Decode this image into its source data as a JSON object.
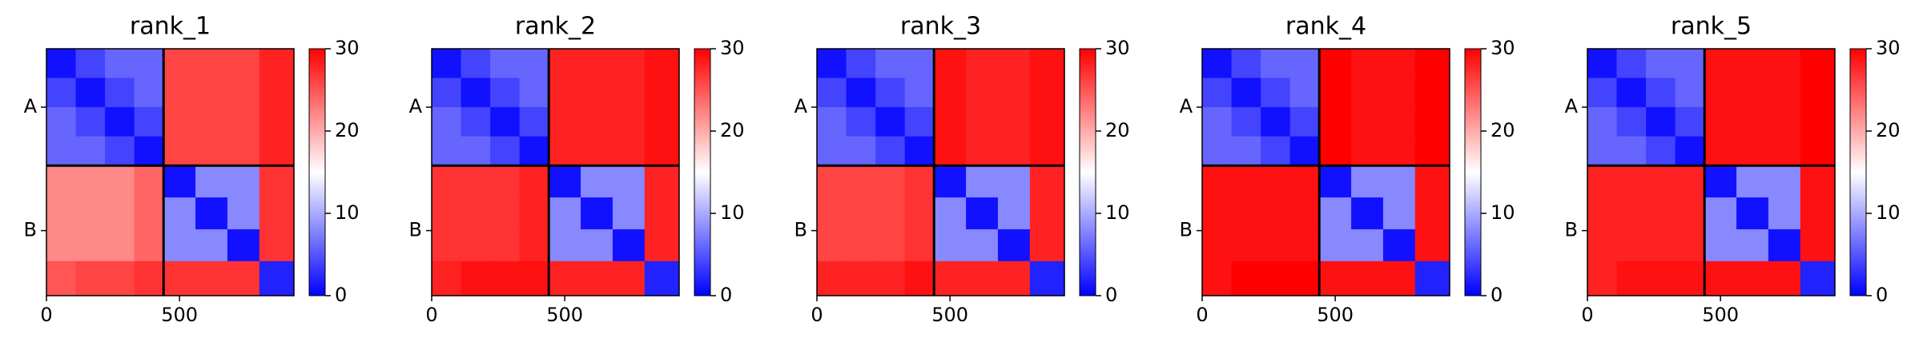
{
  "chart_data": [
    {
      "type": "heatmap",
      "title": "rank_1",
      "edges": [
        0,
        110,
        220,
        330,
        440,
        560,
        680,
        800,
        930
      ],
      "xlim": [
        0,
        930
      ],
      "ylim": [
        930,
        0
      ],
      "xticks": [
        0,
        500
      ],
      "yticks": [
        {
          "value": 220,
          "label": "A"
        },
        {
          "value": 685,
          "label": "B"
        }
      ],
      "chain_breaks": [
        440
      ],
      "clim": [
        0,
        30
      ],
      "cticks": [
        0,
        10,
        20,
        30
      ],
      "values": [
        [
          1,
          4,
          6,
          6,
          26,
          26,
          26,
          28
        ],
        [
          4,
          1,
          4,
          6,
          26,
          26,
          26,
          28
        ],
        [
          6,
          4,
          1,
          4,
          26,
          26,
          26,
          28
        ],
        [
          6,
          6,
          4,
          1,
          26,
          26,
          26,
          28
        ],
        [
          22,
          22,
          22,
          24,
          1,
          8,
          8,
          27
        ],
        [
          22,
          22,
          22,
          24,
          8,
          1,
          8,
          27
        ],
        [
          22,
          22,
          22,
          24,
          8,
          8,
          1,
          27
        ],
        [
          25,
          26,
          26,
          27,
          27,
          27,
          27,
          2
        ]
      ]
    },
    {
      "type": "heatmap",
      "title": "rank_2",
      "edges": [
        0,
        110,
        220,
        330,
        440,
        560,
        680,
        800,
        930
      ],
      "xlim": [
        0,
        930
      ],
      "ylim": [
        930,
        0
      ],
      "xticks": [
        0,
        500
      ],
      "yticks": [
        {
          "value": 220,
          "label": "A"
        },
        {
          "value": 685,
          "label": "B"
        }
      ],
      "chain_breaks": [
        440
      ],
      "clim": [
        0,
        30
      ],
      "cticks": [
        0,
        10,
        20,
        30
      ],
      "values": [
        [
          1,
          4,
          6,
          6,
          28,
          28,
          28,
          29
        ],
        [
          4,
          1,
          4,
          6,
          28,
          28,
          28,
          29
        ],
        [
          6,
          4,
          1,
          4,
          28,
          28,
          28,
          29
        ],
        [
          6,
          6,
          4,
          1,
          28,
          28,
          28,
          29
        ],
        [
          27,
          27,
          27,
          28,
          1,
          8,
          8,
          28
        ],
        [
          27,
          27,
          27,
          28,
          8,
          1,
          8,
          28
        ],
        [
          27,
          27,
          27,
          28,
          8,
          8,
          1,
          28
        ],
        [
          28,
          29,
          29,
          29,
          28,
          28,
          28,
          2
        ]
      ]
    },
    {
      "type": "heatmap",
      "title": "rank_3",
      "edges": [
        0,
        110,
        220,
        330,
        440,
        560,
        680,
        800,
        930
      ],
      "xlim": [
        0,
        930
      ],
      "ylim": [
        930,
        0
      ],
      "xticks": [
        0,
        500
      ],
      "yticks": [
        {
          "value": 220,
          "label": "A"
        },
        {
          "value": 685,
          "label": "B"
        }
      ],
      "chain_breaks": [
        440
      ],
      "clim": [
        0,
        30
      ],
      "cticks": [
        0,
        10,
        20,
        30
      ],
      "values": [
        [
          1,
          4,
          6,
          6,
          29,
          28,
          28,
          29
        ],
        [
          4,
          1,
          4,
          6,
          29,
          28,
          28,
          29
        ],
        [
          6,
          4,
          1,
          4,
          29,
          28,
          28,
          29
        ],
        [
          6,
          6,
          4,
          1,
          29,
          28,
          28,
          29
        ],
        [
          26,
          26,
          26,
          27,
          1,
          8,
          8,
          28
        ],
        [
          26,
          26,
          26,
          27,
          8,
          1,
          8,
          28
        ],
        [
          26,
          26,
          26,
          27,
          8,
          8,
          1,
          28
        ],
        [
          28,
          28,
          28,
          29,
          28,
          28,
          28,
          2
        ]
      ]
    },
    {
      "type": "heatmap",
      "title": "rank_4",
      "edges": [
        0,
        110,
        220,
        330,
        440,
        560,
        680,
        800,
        930
      ],
      "xlim": [
        0,
        930
      ],
      "ylim": [
        930,
        0
      ],
      "xticks": [
        0,
        500
      ],
      "yticks": [
        {
          "value": 220,
          "label": "A"
        },
        {
          "value": 685,
          "label": "B"
        }
      ],
      "chain_breaks": [
        440
      ],
      "clim": [
        0,
        30
      ],
      "cticks": [
        0,
        10,
        20,
        30
      ],
      "values": [
        [
          1,
          4,
          6,
          6,
          30,
          29,
          29,
          30
        ],
        [
          4,
          1,
          4,
          6,
          30,
          29,
          29,
          30
        ],
        [
          6,
          4,
          1,
          4,
          30,
          29,
          29,
          30
        ],
        [
          6,
          6,
          4,
          1,
          30,
          29,
          29,
          30
        ],
        [
          29,
          29,
          29,
          29,
          1,
          8,
          8,
          29
        ],
        [
          29,
          29,
          29,
          29,
          8,
          1,
          8,
          29
        ],
        [
          29,
          29,
          29,
          29,
          8,
          8,
          1,
          29
        ],
        [
          29,
          30,
          30,
          30,
          29,
          29,
          29,
          2
        ]
      ]
    },
    {
      "type": "heatmap",
      "title": "rank_5",
      "edges": [
        0,
        110,
        220,
        330,
        440,
        560,
        680,
        800,
        930
      ],
      "xlim": [
        0,
        930
      ],
      "ylim": [
        930,
        0
      ],
      "xticks": [
        0,
        500
      ],
      "yticks": [
        {
          "value": 220,
          "label": "A"
        },
        {
          "value": 685,
          "label": "B"
        }
      ],
      "chain_breaks": [
        440
      ],
      "clim": [
        0,
        30
      ],
      "cticks": [
        0,
        10,
        20,
        30
      ],
      "values": [
        [
          1,
          4,
          6,
          6,
          29,
          29,
          29,
          30
        ],
        [
          4,
          1,
          4,
          6,
          29,
          29,
          29,
          30
        ],
        [
          6,
          4,
          1,
          4,
          29,
          29,
          29,
          30
        ],
        [
          6,
          6,
          4,
          1,
          29,
          29,
          29,
          30
        ],
        [
          28,
          28,
          28,
          28,
          1,
          8,
          8,
          29
        ],
        [
          28,
          28,
          28,
          28,
          8,
          1,
          8,
          29
        ],
        [
          28,
          28,
          28,
          28,
          8,
          8,
          1,
          29
        ],
        [
          28,
          29,
          29,
          29,
          29,
          29,
          29,
          2
        ]
      ]
    }
  ]
}
